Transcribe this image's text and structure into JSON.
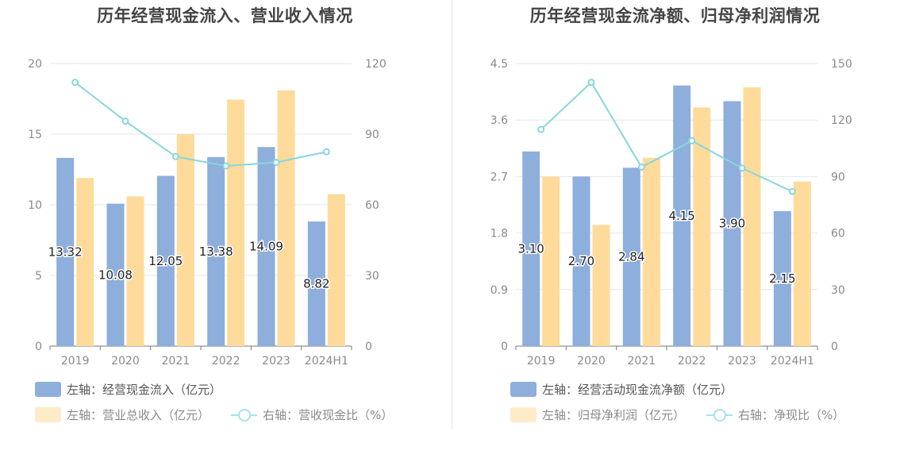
{
  "charts": [
    {
      "title": "历年经营现金流入、营业收入情况",
      "legend": [
        {
          "label": "左轴：经营现金流入（亿元）",
          "kind": "bar",
          "color": "#8eaedc"
        },
        {
          "label": "左轴：营业总收入（亿元）",
          "kind": "bar",
          "color": "#feecc8"
        },
        {
          "label": "右轴：营收现金比（%）",
          "kind": "line",
          "color": "#a7e3ec"
        }
      ]
    },
    {
      "title": "历年经营现金流净额、归母净利润情况",
      "legend": [
        {
          "label": "左轴：经营活动现金流净额（亿元）",
          "kind": "bar",
          "color": "#8eaedc"
        },
        {
          "label": "左轴：归母净利润（亿元）",
          "kind": "bar",
          "color": "#feecc8"
        },
        {
          "label": "右轴：净现比（%）",
          "kind": "line",
          "color": "#a7e3ec"
        }
      ]
    }
  ],
  "chart_data": [
    {
      "type": "bar",
      "title": "历年经营现金流入、营业收入情况",
      "categories": [
        "2019",
        "2020",
        "2021",
        "2022",
        "2023",
        "2024H1"
      ],
      "left_axis": {
        "min": 0,
        "max": 20,
        "ticks": [
          "0",
          "5",
          "10",
          "15",
          "20"
        ]
      },
      "right_axis": {
        "min": 0,
        "max": 120,
        "ticks": [
          "0",
          "30",
          "60",
          "90",
          "120"
        ]
      },
      "series": [
        {
          "name": "左轴：经营现金流入（亿元）",
          "type": "bar",
          "axis": "left",
          "color": "#8eaedc",
          "values": [
            13.32,
            10.08,
            12.05,
            13.38,
            14.09,
            8.82
          ],
          "labels": [
            "13.32",
            "10.08",
            "12.05",
            "13.38",
            "14.09",
            "8.82"
          ]
        },
        {
          "name": "左轴：营业总收入（亿元）",
          "type": "bar",
          "axis": "left",
          "color": "#fedb9b",
          "values": [
            11.9,
            10.6,
            15.0,
            17.45,
            18.1,
            10.75
          ]
        },
        {
          "name": "右轴：营收现金比（%）",
          "type": "line",
          "axis": "right",
          "color": "#87d6de",
          "values": [
            112,
            95.5,
            80.5,
            76.5,
            78,
            82.5
          ]
        }
      ]
    },
    {
      "type": "bar",
      "title": "历年经营现金流净额、归母净利润情况",
      "categories": [
        "2019",
        "2020",
        "2021",
        "2022",
        "2023",
        "2024H1"
      ],
      "left_axis": {
        "min": 0,
        "max": 4.5,
        "ticks": [
          "0",
          "0.9",
          "1.8",
          "2.7",
          "3.6",
          "4.5"
        ]
      },
      "right_axis": {
        "min": 0,
        "max": 150,
        "ticks": [
          "0",
          "30",
          "60",
          "90",
          "120",
          "150"
        ]
      },
      "series": [
        {
          "name": "左轴：经营活动现金流净额（亿元）",
          "type": "bar",
          "axis": "left",
          "color": "#8eaedc",
          "values": [
            3.1,
            2.7,
            2.84,
            4.15,
            3.9,
            2.15
          ],
          "labels": [
            "3.10",
            "2.70",
            "2.84",
            "4.15",
            "3.90",
            "2.15"
          ]
        },
        {
          "name": "左轴：归母净利润（亿元）",
          "type": "bar",
          "axis": "left",
          "color": "#fedb9b",
          "values": [
            2.7,
            1.93,
            3.0,
            3.8,
            4.12,
            2.62
          ]
        },
        {
          "name": "右轴：净现比（%）",
          "type": "line",
          "axis": "right",
          "color": "#87d6de",
          "values": [
            115,
            140,
            95,
            109,
            94.5,
            82
          ]
        }
      ]
    }
  ]
}
